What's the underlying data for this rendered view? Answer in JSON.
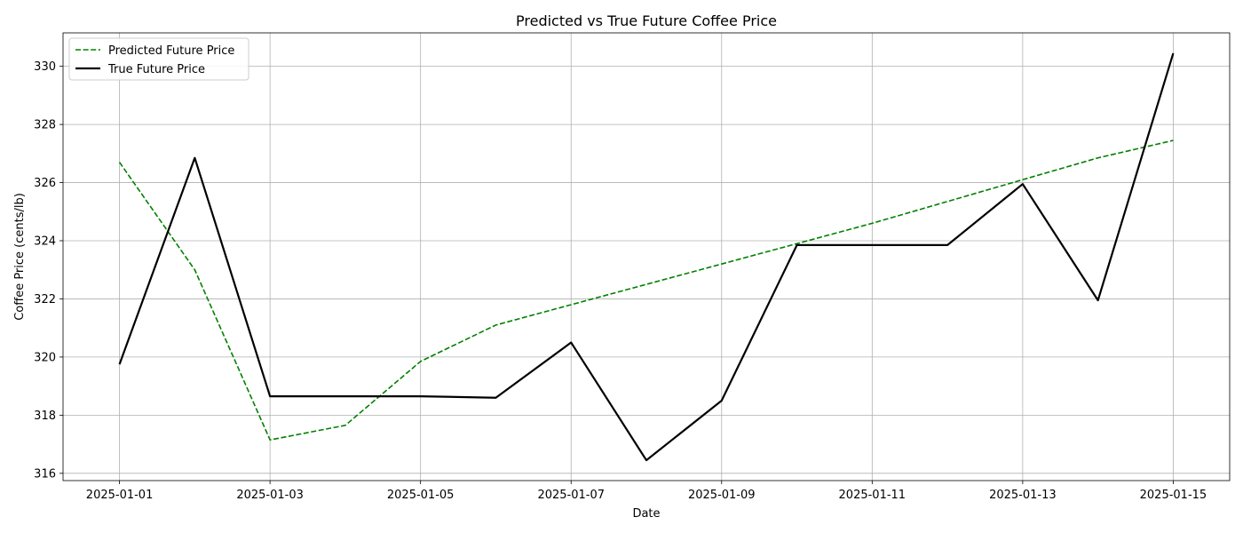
{
  "chart_data": {
    "type": "line",
    "title": "Predicted vs True Future Coffee Price",
    "xlabel": "Date",
    "ylabel": "Coffee Price (cents/lb)",
    "x": [
      "2025-01-01",
      "2025-01-02",
      "2025-01-03",
      "2025-01-04",
      "2025-01-05",
      "2025-01-06",
      "2025-01-07",
      "2025-01-08",
      "2025-01-09",
      "2025-01-10",
      "2025-01-11",
      "2025-01-12",
      "2025-01-13",
      "2025-01-14",
      "2025-01-15"
    ],
    "xticks": [
      "2025-01-01",
      "2025-01-03",
      "2025-01-05",
      "2025-01-07",
      "2025-01-09",
      "2025-01-11",
      "2025-01-13",
      "2025-01-15"
    ],
    "xlim": [
      "2024-12-31T06:00",
      "2025-01-15T18:00"
    ],
    "ylim": [
      315.75,
      331.15
    ],
    "yticks": [
      316,
      318,
      320,
      322,
      324,
      326,
      328,
      330
    ],
    "grid": true,
    "legend_position": "top-left",
    "series": [
      {
        "name": "Predicted Future Price",
        "color": "#008000",
        "style": "dashed",
        "values": [
          326.7,
          323.0,
          317.15,
          317.65,
          319.85,
          321.1,
          321.8,
          322.5,
          323.2,
          323.9,
          324.6,
          325.35,
          326.1,
          326.85,
          327.45
        ]
      },
      {
        "name": "True Future Price",
        "color": "#000000",
        "style": "solid",
        "values": [
          319.75,
          326.85,
          318.65,
          318.65,
          318.65,
          318.6,
          320.5,
          316.45,
          318.5,
          323.85,
          323.85,
          323.85,
          325.95,
          321.95,
          330.45
        ]
      }
    ]
  }
}
